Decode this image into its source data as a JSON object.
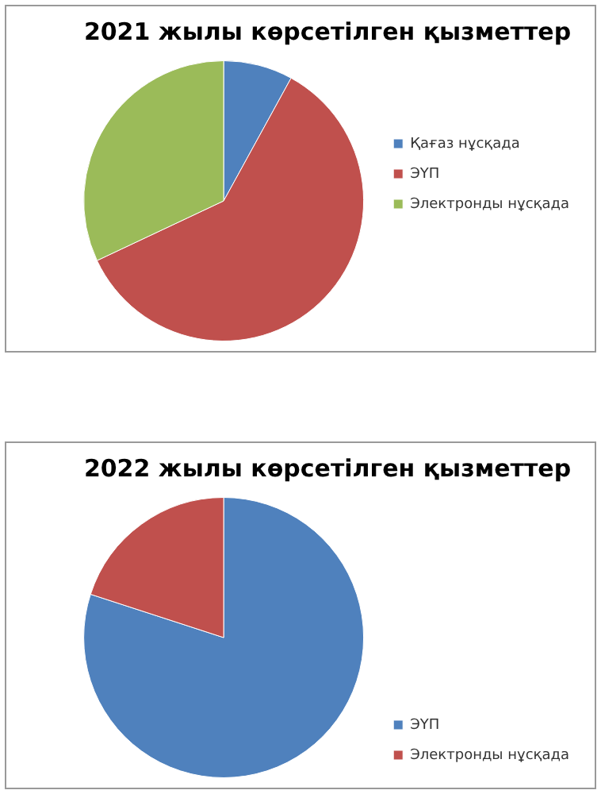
{
  "chart_data": [
    {
      "type": "pie",
      "title": "2021 жылы көрсетілген қызметтер",
      "categories": [
        "Қағаз нұсқада",
        "ЭҮП",
        "Электронды нұсқада"
      ],
      "values": [
        8,
        60,
        32
      ],
      "colors": [
        "#4f81bd",
        "#c0504d",
        "#9bbb59"
      ],
      "legend": "right"
    },
    {
      "type": "pie",
      "title": "2022 жылы көрсетілген қызметтер",
      "categories": [
        "ЭҮП",
        "Электронды нұсқада"
      ],
      "values": [
        80,
        20
      ],
      "colors": [
        "#4f81bd",
        "#c0504d"
      ],
      "legend": "bottom right"
    }
  ]
}
